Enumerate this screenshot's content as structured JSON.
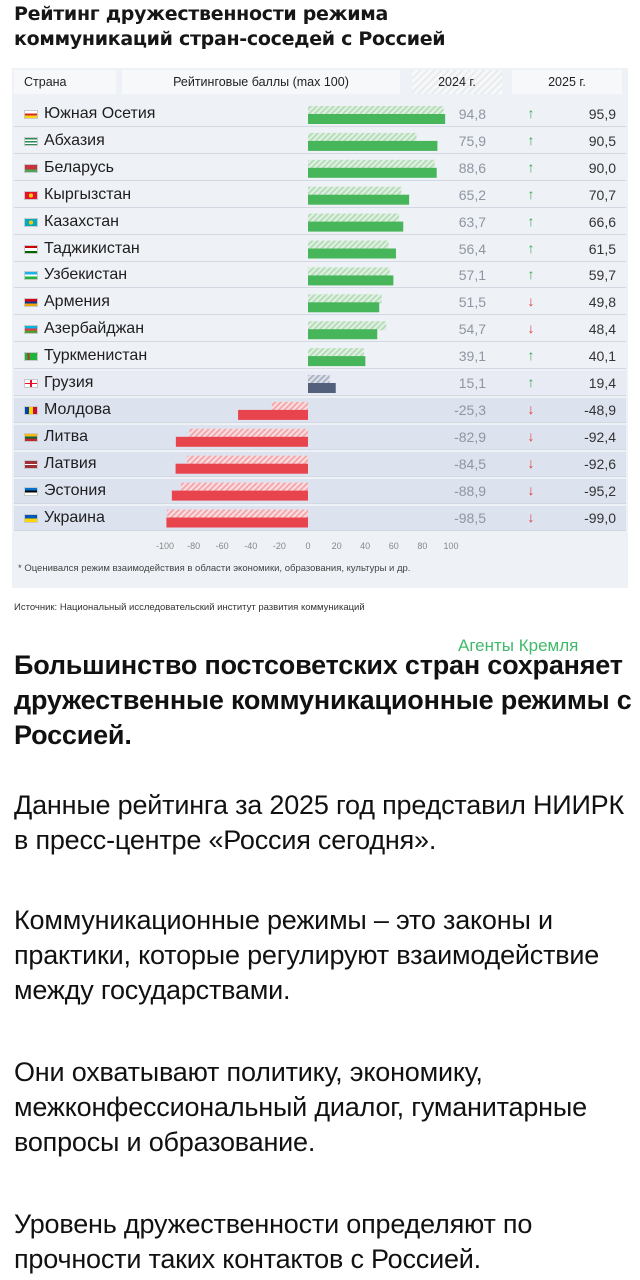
{
  "title_line1": "Рейтинг дружественности режима",
  "title_line2": "коммуникаций стран-соседей с Россией",
  "headers": {
    "country": "Страна",
    "score": "Рейтинговые баллы (max 100)",
    "y2024": "2024 г.",
    "y2025": "2025 г."
  },
  "colors": {
    "positive": "#47b55a",
    "negative": "#e8444e",
    "neutral": "#52607c",
    "up": "#3aaa55",
    "down": "#e03b3b"
  },
  "rows": [
    {
      "country": "Южная Осетия",
      "v2024": "94,8",
      "v2025": "95,9",
      "dir": "up",
      "flag": "south-ossetia"
    },
    {
      "country": "Абхазия",
      "v2024": "75,9",
      "v2025": "90,5",
      "dir": "up",
      "flag": "abkhazia"
    },
    {
      "country": "Беларусь",
      "v2024": "88,6",
      "v2025": "90,0",
      "dir": "up",
      "flag": "belarus"
    },
    {
      "country": "Кыргызстан",
      "v2024": "65,2",
      "v2025": "70,7",
      "dir": "up",
      "flag": "kyrgyzstan"
    },
    {
      "country": "Казахстан",
      "v2024": "63,7",
      "v2025": "66,6",
      "dir": "up",
      "flag": "kazakhstan"
    },
    {
      "country": "Таджикистан",
      "v2024": "56,4",
      "v2025": "61,5",
      "dir": "up",
      "flag": "tajikistan"
    },
    {
      "country": "Узбекистан",
      "v2024": "57,1",
      "v2025": "59,7",
      "dir": "up",
      "flag": "uzbekistan"
    },
    {
      "country": "Армения",
      "v2024": "51,5",
      "v2025": "49,8",
      "dir": "down",
      "flag": "armenia"
    },
    {
      "country": "Азербайджан",
      "v2024": "54,7",
      "v2025": "48,4",
      "dir": "down",
      "flag": "azerbaijan"
    },
    {
      "country": "Туркменистан",
      "v2024": "39,1",
      "v2025": "40,1",
      "dir": "up",
      "flag": "turkmenistan"
    },
    {
      "country": "Грузия",
      "v2024": "15,1",
      "v2025": "19,4",
      "dir": "up",
      "flag": "georgia"
    },
    {
      "country": "Молдова",
      "v2024": "-25,3",
      "v2025": "-48,9",
      "dir": "down",
      "flag": "moldova"
    },
    {
      "country": "Литва",
      "v2024": "-82,9",
      "v2025": "-92,4",
      "dir": "down",
      "flag": "lithuania"
    },
    {
      "country": "Латвия",
      "v2024": "-84,5",
      "v2025": "-92,6",
      "dir": "down",
      "flag": "latvia"
    },
    {
      "country": "Эстония",
      "v2024": "-88,9",
      "v2025": "-95,2",
      "dir": "down",
      "flag": "estonia"
    },
    {
      "country": "Украина",
      "v2024": "-98,5",
      "v2025": "-99,0",
      "dir": "down",
      "flag": "ukraine"
    }
  ],
  "chart_data": {
    "type": "bar",
    "orientation": "horizontal",
    "title": "Рейтинг дружественности режима коммуникаций стран-соседей с Россией",
    "xlabel": "Рейтинговые баллы (max 100)",
    "xlim": [
      -100,
      100
    ],
    "xticks": [
      "-100",
      "-80",
      "-60",
      "-40",
      "-20",
      "0",
      "20",
      "40",
      "60",
      "80",
      "100"
    ],
    "categories": [
      "Южная Осетия",
      "Абхазия",
      "Беларусь",
      "Кыргызстан",
      "Казахстан",
      "Таджикистан",
      "Узбекистан",
      "Армения",
      "Азербайджан",
      "Туркменистан",
      "Грузия",
      "Молдова",
      "Литва",
      "Латвия",
      "Эстония",
      "Украина"
    ],
    "series": [
      {
        "name": "2024 г.",
        "values": [
          94.8,
          75.9,
          88.6,
          65.2,
          63.7,
          56.4,
          57.1,
          51.5,
          54.7,
          39.1,
          15.1,
          -25.3,
          -82.9,
          -84.5,
          -88.9,
          -98.5
        ]
      },
      {
        "name": "2025 г.",
        "values": [
          95.9,
          90.5,
          90.0,
          70.7,
          66.6,
          61.5,
          59.7,
          49.8,
          48.4,
          40.1,
          19.4,
          -48.9,
          -92.4,
          -92.6,
          -95.2,
          -99.0
        ]
      }
    ],
    "grid": false
  },
  "footnote": "* Оценивался режим взаимодействия в области экономики, образования, культуры и др.",
  "source": "Источник: Национальный исследовательский институт развития коммуникаций",
  "badge": "Агенты Кремля",
  "headline": "Большинство постсоветских стран сохраняет дружественные коммуникационные режимы с Россией.",
  "paragraphs": [
    "Данные рейтинга за 2025 год представил НИИРК в пресс-центре «Россия сегодня».",
    "Коммуникационные режимы – это законы и практики, которые регулируют взаимодействие между государствами.",
    "Они охватывают политику, экономику, межконфессиональный диалог, гуманитарные вопросы и образование.",
    "Уровень дружественности определяют по прочности таких контактов с Россией."
  ]
}
